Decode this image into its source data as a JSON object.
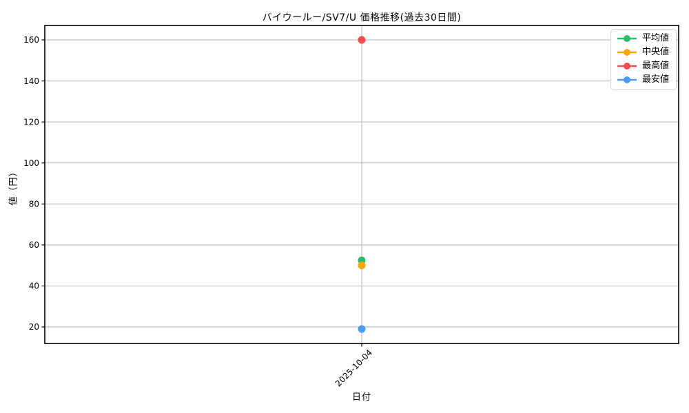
{
  "chart_data": {
    "type": "line",
    "title": "バイウールー/SV7/U 価格推移(過去30日間)",
    "xlabel": "日付",
    "ylabel": "値（円）",
    "categories": [
      "2025-10-04"
    ],
    "series": [
      {
        "name": "平均値",
        "color": "#2bbd6b",
        "values": [
          52.5
        ]
      },
      {
        "name": "中央値",
        "color": "#ffa40e",
        "values": [
          50
        ]
      },
      {
        "name": "最高値",
        "color": "#f54a4f",
        "values": [
          160
        ]
      },
      {
        "name": "最安値",
        "color": "#4d9cf3",
        "values": [
          19
        ]
      }
    ],
    "yticks": [
      20,
      40,
      60,
      80,
      100,
      120,
      140,
      160
    ],
    "ylim": [
      11.95,
      167.05
    ],
    "grid": true,
    "legend_position": "upper right",
    "marker": "o"
  },
  "colors": {
    "grid": "#b3b3b3",
    "spine": "#000000",
    "text": "#000000",
    "legend_border": "#d4d4d4",
    "background": "#ffffff"
  }
}
